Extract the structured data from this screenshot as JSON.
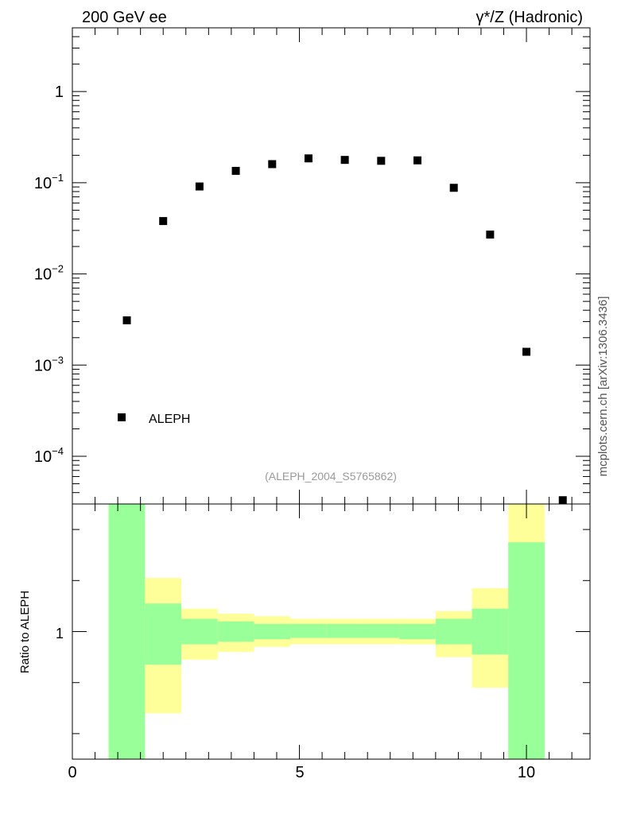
{
  "header": {
    "left_title": "200 GeV ee",
    "right_title": "γ*/Z (Hadronic)"
  },
  "side_label": "mcplots.cern.ch [arXiv:1306.3436]",
  "analysis_id": "(ALEPH_2004_S5765862)",
  "colors": {
    "marker": "#000000",
    "band_inner": "#99ff99",
    "band_outer": "#ffff99",
    "side_label": "#555555",
    "analysis_id": "#999999"
  },
  "chart_data": [
    {
      "type": "scatter",
      "yscale": "log",
      "xlim": [
        0,
        11.4
      ],
      "ylim": [
        3e-05,
        5
      ],
      "y_tick_labels": [
        {
          "value": 1,
          "base": "1",
          "exp": ""
        },
        {
          "value": 0.1,
          "base": "10",
          "exp": "−1"
        },
        {
          "value": 0.01,
          "base": "10",
          "exp": "−2"
        },
        {
          "value": 0.001,
          "base": "10",
          "exp": "−3"
        },
        {
          "value": 0.0001,
          "base": "10",
          "exp": "−4"
        }
      ],
      "legend": {
        "position": "bottom-left",
        "entries": [
          "ALEPH"
        ]
      },
      "series": [
        {
          "name": "ALEPH",
          "x": [
            1.2,
            2.0,
            2.8,
            3.6,
            4.4,
            5.2,
            6.0,
            6.8,
            7.6,
            8.4,
            9.2,
            10.0,
            10.8
          ],
          "y": [
            0.0031,
            0.038,
            0.091,
            0.135,
            0.16,
            0.185,
            0.178,
            0.174,
            0.176,
            0.088,
            0.027,
            0.0014,
            3.3e-05
          ]
        }
      ]
    },
    {
      "type": "area",
      "ylabel": "Ratio to ALEPH",
      "xlim": [
        0,
        11.4
      ],
      "ylim": [
        0.5,
        1.5
      ],
      "x_tick_labels": [
        "0",
        "5",
        "10"
      ],
      "x_ticks": [
        0,
        5,
        10
      ],
      "y_tick_labels": [
        "1"
      ],
      "y_ticks": [
        1
      ],
      "bands": [
        {
          "x0": 0.8,
          "x1": 1.6,
          "outer": [
            0.5,
            1.5
          ],
          "inner": [
            0.5,
            1.5
          ]
        },
        {
          "x0": 1.6,
          "x1": 2.4,
          "outer": [
            0.68,
            1.21
          ],
          "inner": [
            0.87,
            1.11
          ]
        },
        {
          "x0": 2.4,
          "x1": 3.2,
          "outer": [
            0.89,
            1.09
          ],
          "inner": [
            0.95,
            1.05
          ]
        },
        {
          "x0": 3.2,
          "x1": 4.0,
          "outer": [
            0.92,
            1.07
          ],
          "inner": [
            0.96,
            1.04
          ]
        },
        {
          "x0": 4.0,
          "x1": 4.8,
          "outer": [
            0.94,
            1.06
          ],
          "inner": [
            0.97,
            1.03
          ]
        },
        {
          "x0": 4.8,
          "x1": 5.6,
          "outer": [
            0.95,
            1.05
          ],
          "inner": [
            0.975,
            1.03
          ]
        },
        {
          "x0": 5.6,
          "x1": 6.4,
          "outer": [
            0.95,
            1.05
          ],
          "inner": [
            0.975,
            1.03
          ]
        },
        {
          "x0": 6.4,
          "x1": 7.2,
          "outer": [
            0.95,
            1.05
          ],
          "inner": [
            0.975,
            1.03
          ]
        },
        {
          "x0": 7.2,
          "x1": 8.0,
          "outer": [
            0.95,
            1.05
          ],
          "inner": [
            0.97,
            1.03
          ]
        },
        {
          "x0": 8.0,
          "x1": 8.8,
          "outer": [
            0.9,
            1.08
          ],
          "inner": [
            0.95,
            1.05
          ]
        },
        {
          "x0": 8.8,
          "x1": 9.6,
          "outer": [
            0.78,
            1.17
          ],
          "inner": [
            0.91,
            1.09
          ]
        },
        {
          "x0": 9.6,
          "x1": 10.4,
          "outer": [
            0.5,
            1.5
          ],
          "inner": [
            0.5,
            1.35
          ]
        }
      ]
    }
  ]
}
